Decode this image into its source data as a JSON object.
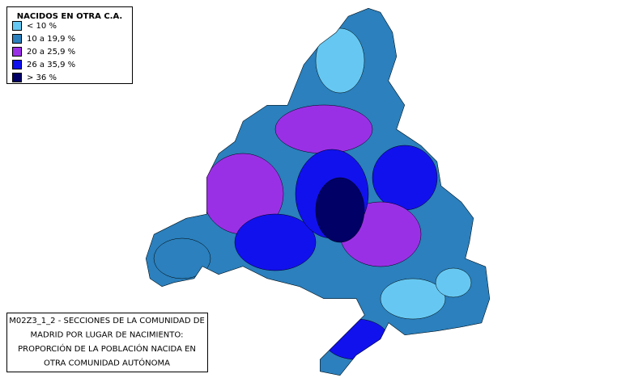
{
  "legend": {
    "title": "NACIDOS EN OTRA C.A.",
    "items": [
      {
        "label": "< 10 %",
        "color": "#66c8f2"
      },
      {
        "label": "10 a 19,9 %",
        "color": "#2b80bd"
      },
      {
        "label": "20 a 25,9 %",
        "color": "#9a30e6"
      },
      {
        "label": "26 a 35,9 %",
        "color": "#1111ee"
      },
      {
        "label": "> 36 %",
        "color": "#000066"
      }
    ]
  },
  "caption": {
    "lines": [
      "M02Z3_1_2 - SECCIONES DE LA COMUNIDAD DE",
      "MADRID POR LUGAR DE NACIMIENTO:",
      "PROPORCIÓN DE LA POBLACIÓN NACIDA EN",
      "OTRA COMUNIDAD AUTÓNOMA"
    ]
  }
}
